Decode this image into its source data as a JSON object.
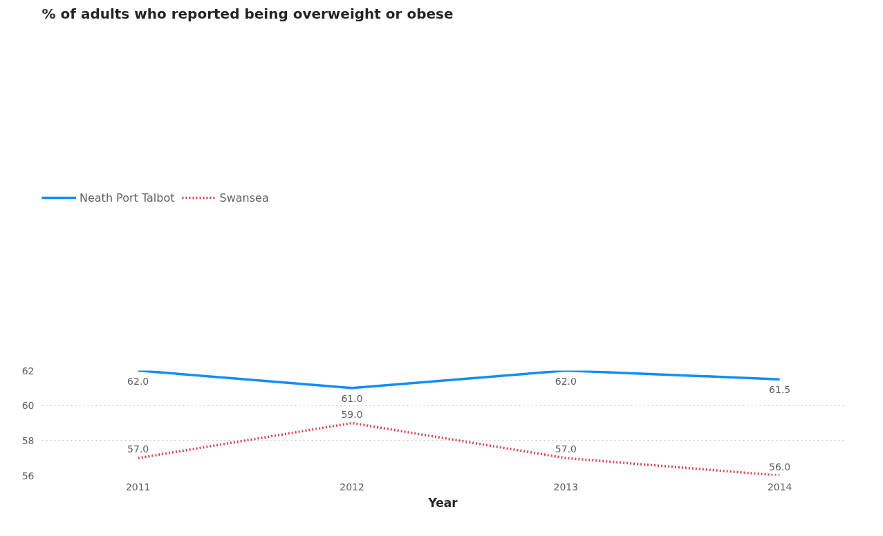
{
  "chart_data": {
    "type": "line",
    "title": "% of adults who reported being overweight or obese",
    "xlabel": "Year",
    "categories": [
      "2011",
      "2012",
      "2013",
      "2014"
    ],
    "series": [
      {
        "name": "Neath Port Talbot",
        "color": "#118dff",
        "line_style": "solid",
        "values": [
          62.0,
          61.0,
          62.0,
          61.5
        ],
        "value_labels": [
          "62.0",
          "61.0",
          "62.0",
          "61.5"
        ]
      },
      {
        "name": "Swansea",
        "color": "#d64550",
        "line_style": "dotted",
        "values": [
          57.0,
          59.0,
          57.0,
          56.0
        ],
        "value_labels": [
          "57.0",
          "59.0",
          "57.0",
          "56.0"
        ]
      }
    ],
    "ylim": [
      56,
      62
    ],
    "yticks": [
      56,
      58,
      60,
      62
    ],
    "grid": "y",
    "legend": "top left"
  }
}
